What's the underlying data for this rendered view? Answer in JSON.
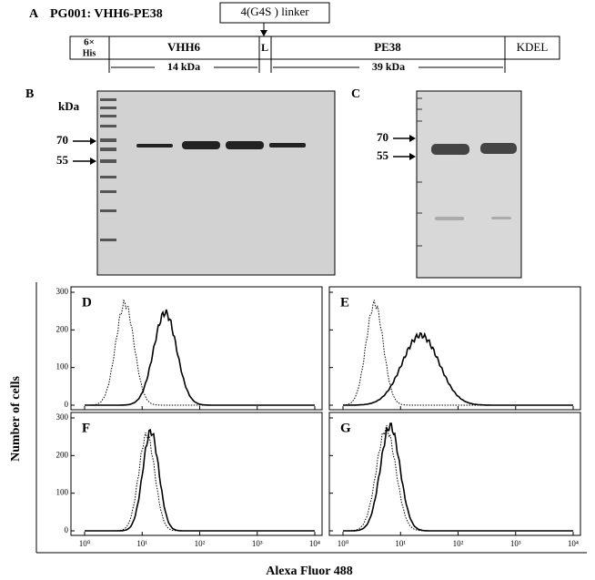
{
  "panel_a": {
    "label": "A",
    "title": "PG001: VHH6-PE38",
    "linker": "4(G4S ) linker",
    "segments": [
      "6×",
      "His",
      "VHH6",
      "L",
      "PE38",
      "KDEL"
    ],
    "sizes": [
      "14 kDa",
      "39 kDa"
    ]
  },
  "panel_b": {
    "label": "B",
    "unit": "kDa",
    "markers": [
      "70",
      "55"
    ]
  },
  "panel_c": {
    "label": "C",
    "markers": [
      "70",
      "55"
    ]
  },
  "flow": {
    "panels": [
      "D",
      "E",
      "F",
      "G"
    ],
    "y_label": "Number of cells",
    "x_label": "Alexa Fluor 488",
    "yticks": [
      "0",
      "100",
      "200",
      "300"
    ],
    "xticks": [
      "10⁰",
      "10¹",
      "10²",
      "10³",
      "10⁴"
    ]
  }
}
